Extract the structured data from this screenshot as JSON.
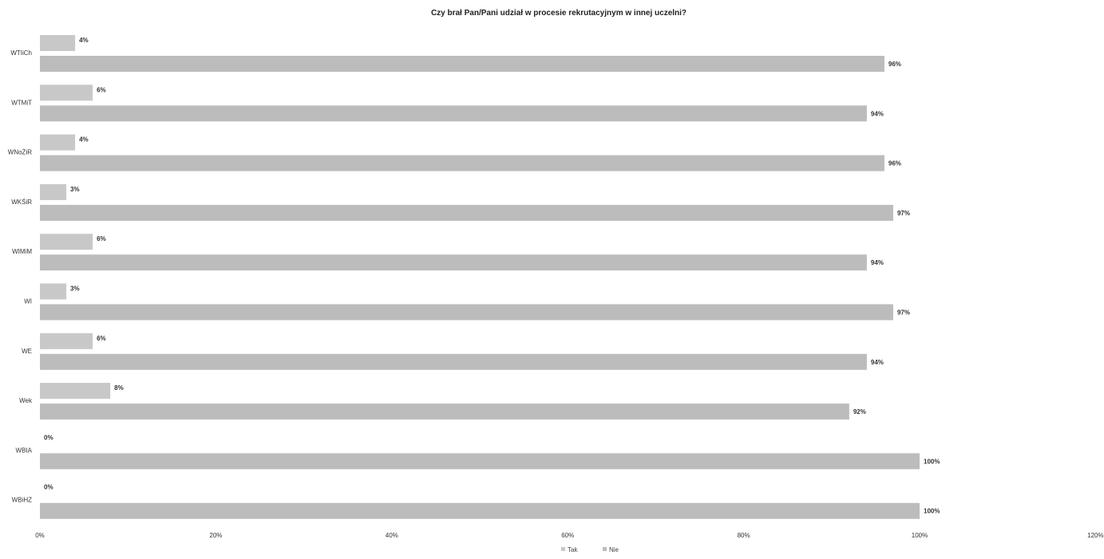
{
  "chart_data": {
    "type": "bar",
    "orientation": "horizontal",
    "title": "Czy brał Pan/Pani udział w procesie rekrutacyjnym w innej uczelni?",
    "xlabel": "",
    "ylabel": "",
    "categories": [
      "WTIiCh",
      "WTMiT",
      "WNoŻiR",
      "WKŚiR",
      "WIMiM",
      "WI",
      "WE",
      "Wek",
      "WBIA",
      "WBiHZ"
    ],
    "series": [
      {
        "name": "Tak",
        "values": [
          4,
          6,
          4,
          3,
          6,
          3,
          6,
          8,
          0,
          0
        ],
        "labels": [
          "4%",
          "6%",
          "4%",
          "3%",
          "6%",
          "3%",
          "6%",
          "8%",
          "0%",
          "0%"
        ],
        "color": "#c8c8c8"
      },
      {
        "name": "Nie",
        "values": [
          96,
          94,
          96,
          97,
          94,
          97,
          94,
          92,
          100,
          100
        ],
        "labels": [
          "96%",
          "94%",
          "96%",
          "97%",
          "94%",
          "97%",
          "94%",
          "92%",
          "100%",
          "100%"
        ],
        "color": "#bcbcbc"
      }
    ],
    "xlim": [
      0,
      120
    ],
    "ticks": [
      0,
      20,
      40,
      60,
      80,
      100,
      120
    ],
    "tick_labels": [
      "0%",
      "20%",
      "40%",
      "60%",
      "80%",
      "100%",
      "120%"
    ],
    "grid": false,
    "legend": "bottom"
  }
}
